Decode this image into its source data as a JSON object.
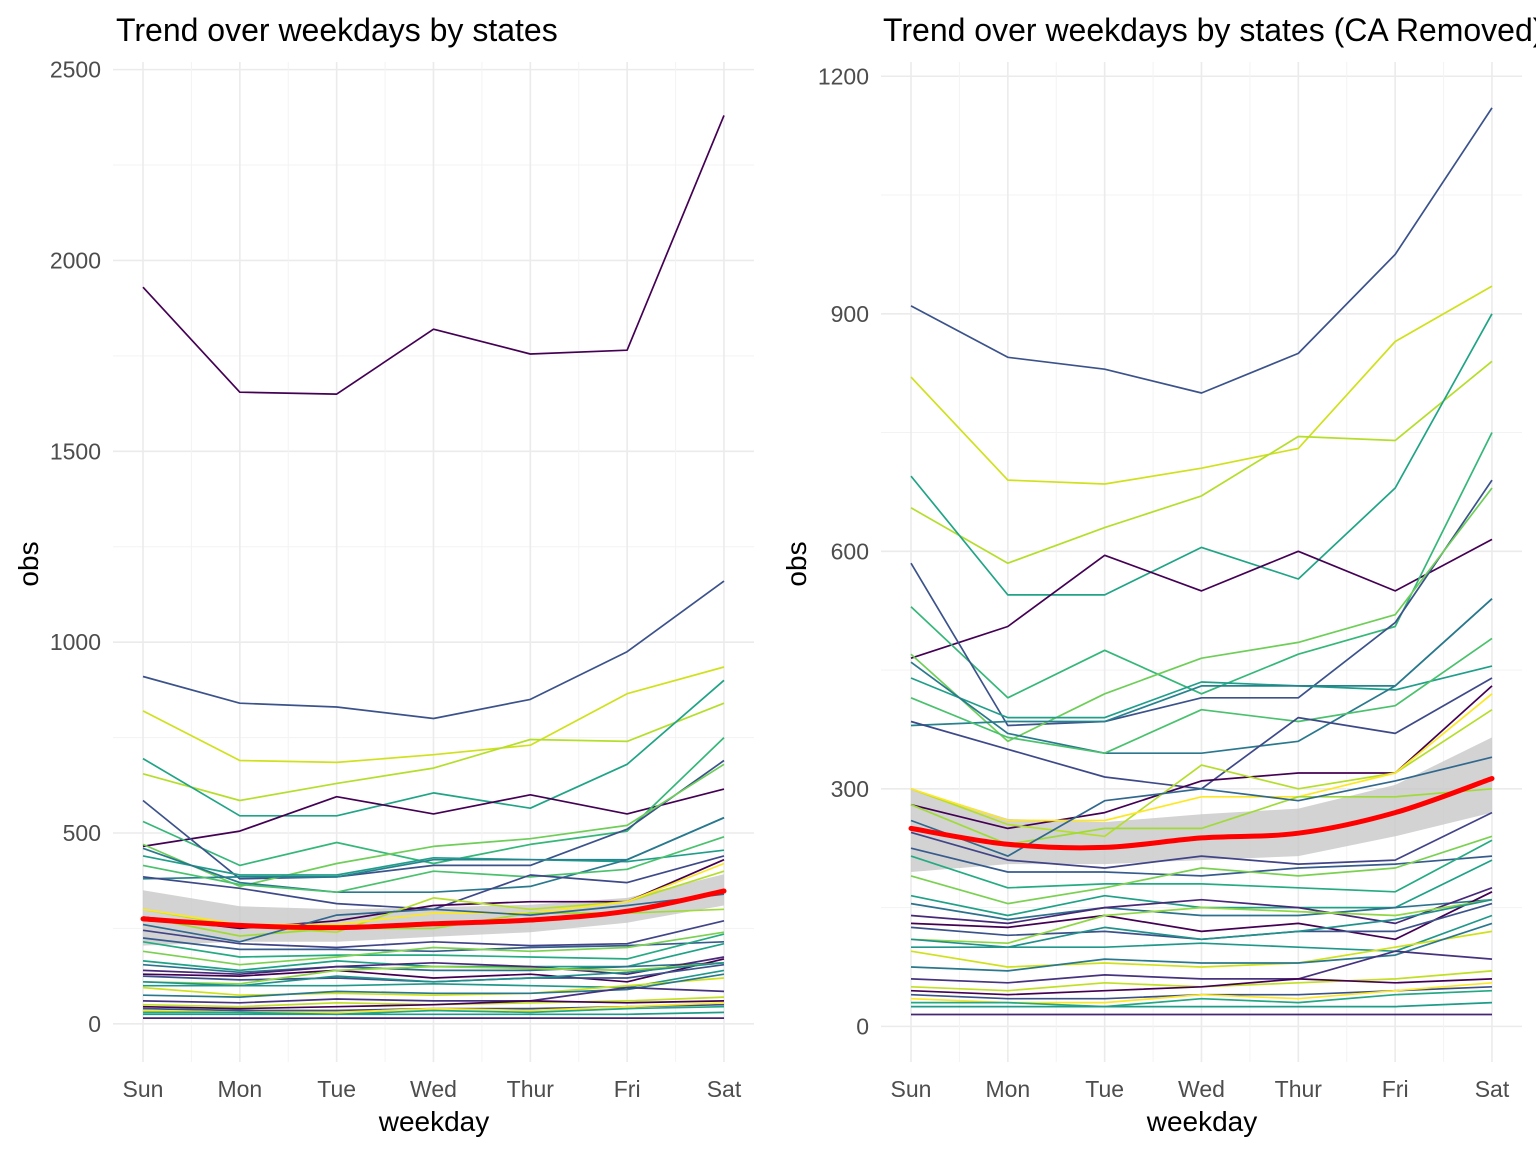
{
  "chart_data": [
    {
      "type": "line",
      "title": "Trend over weekdays by states",
      "xlabel": "weekday",
      "ylabel": "obs",
      "categories": [
        "Sun",
        "Mon",
        "Tue",
        "Wed",
        "Thur",
        "Fri",
        "Sat"
      ],
      "yticks": [
        "0",
        "500",
        "1000",
        "1500",
        "2000",
        "2500"
      ],
      "ylim": [
        -100,
        2520
      ],
      "grid": true,
      "legend": "none",
      "smooth_color": "#ff0000",
      "band_color": "#c8c8c8",
      "smooth": [
        275,
        258,
        252,
        262,
        272,
        295,
        348
      ],
      "band_lower": [
        205,
        215,
        215,
        228,
        240,
        265,
        310
      ],
      "band_upper": [
        350,
        308,
        300,
        305,
        312,
        330,
        392
      ],
      "series": [
        {
          "color": "#440154",
          "values": [
            1930,
            1655,
            1650,
            1820,
            1755,
            1765,
            2380
          ]
        },
        {
          "color": "#3b528b",
          "values": [
            910,
            840,
            830,
            800,
            850,
            975,
            1160
          ]
        },
        {
          "color": "#d0e11c",
          "values": [
            820,
            690,
            685,
            705,
            730,
            865,
            935
          ]
        },
        {
          "color": "#b5de2b",
          "values": [
            655,
            585,
            630,
            670,
            745,
            740,
            840
          ]
        },
        {
          "color": "#20a486",
          "values": [
            695,
            545,
            545,
            605,
            565,
            680,
            900
          ]
        },
        {
          "color": "#440154",
          "values": [
            465,
            505,
            595,
            550,
            600,
            550,
            615
          ]
        },
        {
          "color": "#35b779",
          "values": [
            530,
            415,
            475,
            420,
            470,
            505,
            750
          ]
        },
        {
          "color": "#3b528b",
          "values": [
            585,
            380,
            385,
            415,
            415,
            510,
            690
          ]
        },
        {
          "color": "#6ece58",
          "values": [
            470,
            360,
            420,
            465,
            485,
            520,
            680
          ]
        },
        {
          "color": "#1f9e89",
          "values": [
            440,
            390,
            390,
            435,
            430,
            425,
            455
          ]
        },
        {
          "color": "#26828e",
          "values": [
            380,
            385,
            385,
            430,
            430,
            430,
            540
          ]
        },
        {
          "color": "#2a788e",
          "values": [
            460,
            370,
            345,
            345,
            360,
            430,
            540
          ]
        },
        {
          "color": "#4ac16d",
          "values": [
            415,
            365,
            345,
            400,
            385,
            405,
            490
          ]
        },
        {
          "color": "#3e4989",
          "values": [
            385,
            355,
            315,
            300,
            390,
            370,
            440
          ]
        },
        {
          "color": "#440154",
          "values": [
            280,
            250,
            270,
            310,
            320,
            320,
            430
          ]
        },
        {
          "color": "#b5de2b",
          "values": [
            300,
            255,
            240,
            330,
            300,
            320,
            400
          ]
        },
        {
          "color": "#fde725",
          "values": [
            300,
            260,
            260,
            290,
            290,
            320,
            420
          ]
        },
        {
          "color": "#a0da39",
          "values": [
            280,
            230,
            250,
            250,
            290,
            290,
            300
          ]
        },
        {
          "color": "#31688e",
          "values": [
            260,
            215,
            285,
            300,
            285,
            310,
            340
          ]
        },
        {
          "color": "#414487",
          "values": [
            245,
            210,
            200,
            215,
            205,
            210,
            270
          ]
        },
        {
          "color": "#365c8d",
          "values": [
            225,
            195,
            195,
            190,
            200,
            205,
            215
          ]
        },
        {
          "color": "#25ab82",
          "values": [
            215,
            175,
            180,
            180,
            175,
            170,
            235
          ]
        },
        {
          "color": "#7ad151",
          "values": [
            190,
            155,
            175,
            200,
            190,
            200,
            240
          ]
        },
        {
          "color": "#1fa187",
          "values": [
            165,
            140,
            165,
            150,
            150,
            150,
            210
          ]
        },
        {
          "color": "#2c728e",
          "values": [
            155,
            135,
            150,
            140,
            140,
            150,
            160
          ]
        },
        {
          "color": "#482878",
          "values": [
            140,
            130,
            150,
            160,
            150,
            130,
            175
          ]
        },
        {
          "color": "#440154",
          "values": [
            130,
            125,
            140,
            120,
            130,
            110,
            170
          ]
        },
        {
          "color": "#3b528b",
          "values": [
            125,
            115,
            120,
            110,
            120,
            120,
            155
          ]
        },
        {
          "color": "#8fd744",
          "values": [
            110,
            105,
            140,
            150,
            145,
            140,
            160
          ]
        },
        {
          "color": "#1f988b",
          "values": [
            100,
            100,
            100,
            105,
            100,
            95,
            140
          ]
        },
        {
          "color": "#21918c",
          "values": [
            110,
            100,
            125,
            110,
            120,
            135,
            160
          ]
        },
        {
          "color": "#d0e11c",
          "values": [
            95,
            75,
            80,
            75,
            80,
            100,
            120
          ]
        },
        {
          "color": "#2a788e",
          "values": [
            75,
            70,
            85,
            80,
            80,
            90,
            130
          ]
        },
        {
          "color": "#46327e",
          "values": [
            60,
            55,
            65,
            60,
            60,
            95,
            85
          ]
        },
        {
          "color": "#c2df23",
          "values": [
            50,
            45,
            55,
            50,
            55,
            60,
            70
          ]
        },
        {
          "color": "#440154",
          "values": [
            45,
            40,
            45,
            50,
            60,
            55,
            60
          ]
        },
        {
          "color": "#3b528b",
          "values": [
            40,
            35,
            35,
            40,
            40,
            45,
            50
          ]
        },
        {
          "color": "#fde725",
          "values": [
            35,
            30,
            30,
            40,
            35,
            45,
            55
          ]
        },
        {
          "color": "#22a884",
          "values": [
            30,
            30,
            25,
            35,
            30,
            40,
            45
          ]
        },
        {
          "color": "#1e9c89",
          "values": [
            25,
            25,
            25,
            25,
            25,
            25,
            30
          ]
        },
        {
          "color": "#482475",
          "values": [
            15,
            15,
            15,
            15,
            15,
            15,
            15
          ]
        }
      ]
    },
    {
      "type": "line",
      "title": "Trend over weekdays by states (CA Removed)",
      "xlabel": "weekday",
      "ylabel": "obs",
      "categories": [
        "Sun",
        "Mon",
        "Tue",
        "Wed",
        "Thur",
        "Fri",
        "Sat"
      ],
      "yticks": [
        "0",
        "300",
        "600",
        "900",
        "1200"
      ],
      "ylim": [
        -45,
        1218
      ],
      "grid": true,
      "legend": "none",
      "smooth_color": "#ff0000",
      "band_color": "#c8c8c8",
      "smooth": [
        250,
        230,
        226,
        238,
        244,
        270,
        313
      ],
      "band_lower": [
        195,
        205,
        205,
        210,
        215,
        240,
        270
      ],
      "band_upper": [
        300,
        262,
        258,
        268,
        275,
        305,
        365
      ],
      "series": [
        {
          "color": "#3b528b",
          "values": [
            910,
            845,
            830,
            800,
            850,
            975,
            1160
          ]
        },
        {
          "color": "#d0e11c",
          "values": [
            820,
            690,
            685,
            705,
            730,
            865,
            935
          ]
        },
        {
          "color": "#b5de2b",
          "values": [
            655,
            585,
            630,
            670,
            745,
            740,
            840
          ]
        },
        {
          "color": "#20a486",
          "values": [
            695,
            545,
            545,
            605,
            565,
            680,
            900
          ]
        },
        {
          "color": "#440154",
          "values": [
            465,
            505,
            595,
            550,
            600,
            550,
            615
          ]
        },
        {
          "color": "#35b779",
          "values": [
            530,
            415,
            475,
            420,
            470,
            505,
            750
          ]
        },
        {
          "color": "#3b528b",
          "values": [
            585,
            380,
            385,
            415,
            415,
            510,
            690
          ]
        },
        {
          "color": "#6ece58",
          "values": [
            470,
            360,
            420,
            465,
            485,
            520,
            680
          ]
        },
        {
          "color": "#1f9e89",
          "values": [
            440,
            390,
            390,
            435,
            430,
            425,
            455
          ]
        },
        {
          "color": "#26828e",
          "values": [
            380,
            385,
            385,
            430,
            430,
            430,
            540
          ]
        },
        {
          "color": "#2a788e",
          "values": [
            460,
            370,
            345,
            345,
            360,
            430,
            540
          ]
        },
        {
          "color": "#4ac16d",
          "values": [
            415,
            365,
            345,
            400,
            385,
            405,
            490
          ]
        },
        {
          "color": "#3e4989",
          "values": [
            385,
            350,
            315,
            300,
            390,
            370,
            440
          ]
        },
        {
          "color": "#440154",
          "values": [
            280,
            250,
            270,
            310,
            320,
            320,
            430
          ]
        },
        {
          "color": "#b5de2b",
          "values": [
            300,
            255,
            240,
            330,
            300,
            320,
            400
          ]
        },
        {
          "color": "#fde725",
          "values": [
            300,
            260,
            260,
            290,
            290,
            320,
            420
          ]
        },
        {
          "color": "#a0da39",
          "values": [
            280,
            230,
            250,
            250,
            290,
            290,
            300
          ]
        },
        {
          "color": "#31688e",
          "values": [
            260,
            215,
            285,
            300,
            285,
            310,
            340
          ]
        },
        {
          "color": "#414487",
          "values": [
            245,
            210,
            200,
            215,
            205,
            210,
            270
          ]
        },
        {
          "color": "#365c8d",
          "values": [
            225,
            195,
            195,
            190,
            200,
            205,
            215
          ]
        },
        {
          "color": "#25ab82",
          "values": [
            215,
            175,
            180,
            180,
            175,
            170,
            235
          ]
        },
        {
          "color": "#7ad151",
          "values": [
            190,
            155,
            175,
            200,
            190,
            200,
            240
          ]
        },
        {
          "color": "#1fa187",
          "values": [
            165,
            140,
            165,
            150,
            150,
            150,
            210
          ]
        },
        {
          "color": "#2c728e",
          "values": [
            155,
            135,
            150,
            140,
            140,
            150,
            160
          ]
        },
        {
          "color": "#482878",
          "values": [
            140,
            130,
            150,
            160,
            150,
            130,
            175
          ]
        },
        {
          "color": "#440154",
          "values": [
            130,
            125,
            140,
            120,
            130,
            110,
            170
          ]
        },
        {
          "color": "#3b528b",
          "values": [
            125,
            115,
            120,
            110,
            120,
            120,
            155
          ]
        },
        {
          "color": "#8fd744",
          "values": [
            110,
            105,
            140,
            150,
            145,
            140,
            160
          ]
        },
        {
          "color": "#1f988b",
          "values": [
            100,
            100,
            100,
            105,
            100,
            95,
            140
          ]
        },
        {
          "color": "#21918c",
          "values": [
            110,
            100,
            125,
            110,
            120,
            135,
            160
          ]
        },
        {
          "color": "#d0e11c",
          "values": [
            95,
            75,
            80,
            75,
            80,
            100,
            120
          ]
        },
        {
          "color": "#2a788e",
          "values": [
            75,
            70,
            85,
            80,
            80,
            90,
            130
          ]
        },
        {
          "color": "#46327e",
          "values": [
            60,
            55,
            65,
            60,
            60,
            95,
            85
          ]
        },
        {
          "color": "#c2df23",
          "values": [
            50,
            45,
            55,
            50,
            55,
            60,
            70
          ]
        },
        {
          "color": "#440154",
          "values": [
            45,
            40,
            45,
            50,
            60,
            55,
            60
          ]
        },
        {
          "color": "#3b528b",
          "values": [
            40,
            35,
            35,
            40,
            40,
            45,
            50
          ]
        },
        {
          "color": "#fde725",
          "values": [
            35,
            30,
            30,
            40,
            35,
            45,
            55
          ]
        },
        {
          "color": "#22a884",
          "values": [
            30,
            30,
            25,
            35,
            30,
            40,
            45
          ]
        },
        {
          "color": "#1e9c89",
          "values": [
            25,
            25,
            25,
            25,
            25,
            25,
            30
          ]
        },
        {
          "color": "#482475",
          "values": [
            15,
            15,
            15,
            15,
            15,
            15,
            15
          ]
        }
      ]
    }
  ]
}
